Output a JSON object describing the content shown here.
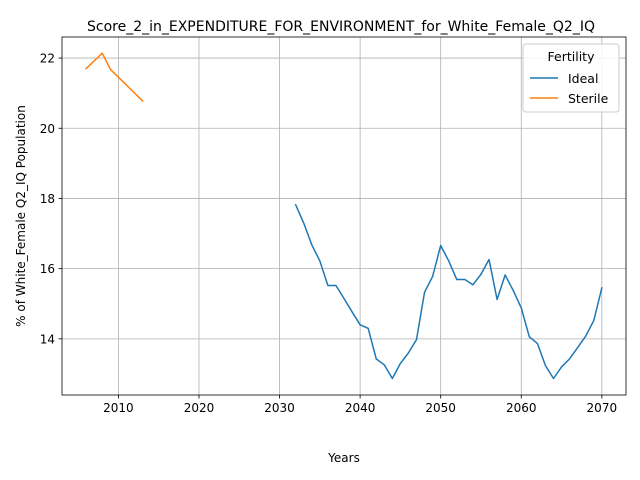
{
  "chart_data": {
    "type": "line",
    "title": "Score_2_in_EXPENDITURE_FOR_ENVIRONMENT_for_White_Female_Q2_IQ",
    "xlabel": "Years",
    "ylabel": "% of White_Female Q2_IQ Population",
    "xlim": [
      2003,
      2073
    ],
    "ylim": [
      12.4,
      22.6
    ],
    "xticks": [
      2010,
      2020,
      2030,
      2040,
      2050,
      2060,
      2070
    ],
    "yticks": [
      14,
      16,
      18,
      20,
      22
    ],
    "grid": true,
    "legend": {
      "title": "Fertility",
      "placement": "top-right"
    },
    "series": [
      {
        "name": "Ideal",
        "color": "#1f77b4",
        "points": [
          [
            2032,
            17.82
          ],
          [
            2033,
            17.3
          ],
          [
            2034,
            16.68
          ],
          [
            2035,
            16.22
          ],
          [
            2036,
            15.52
          ],
          [
            2037,
            15.52
          ],
          [
            2038,
            15.15
          ],
          [
            2039,
            14.77
          ],
          [
            2040,
            14.4
          ],
          [
            2041,
            14.3
          ],
          [
            2042,
            13.43
          ],
          [
            2043,
            13.26
          ],
          [
            2044,
            12.87
          ],
          [
            2045,
            13.3
          ],
          [
            2046,
            13.6
          ],
          [
            2047,
            13.98
          ],
          [
            2048,
            15.33
          ],
          [
            2049,
            15.78
          ],
          [
            2050,
            16.66
          ],
          [
            2051,
            16.22
          ],
          [
            2052,
            15.69
          ],
          [
            2053,
            15.69
          ],
          [
            2054,
            15.54
          ],
          [
            2055,
            15.84
          ],
          [
            2056,
            16.26
          ],
          [
            2057,
            15.12
          ],
          [
            2058,
            15.82
          ],
          [
            2059,
            15.38
          ],
          [
            2060,
            14.88
          ],
          [
            2061,
            14.06
          ],
          [
            2062,
            13.87
          ],
          [
            2063,
            13.24
          ],
          [
            2064,
            12.87
          ],
          [
            2065,
            13.2
          ],
          [
            2066,
            13.43
          ],
          [
            2067,
            13.75
          ],
          [
            2068,
            14.08
          ],
          [
            2069,
            14.52
          ],
          [
            2070,
            15.45
          ]
        ]
      },
      {
        "name": "Sterile",
        "color": "#ff7f0e",
        "points": [
          [
            2006,
            21.7
          ],
          [
            2008,
            22.14
          ],
          [
            2009,
            21.68
          ],
          [
            2013,
            20.78
          ]
        ]
      }
    ]
  }
}
